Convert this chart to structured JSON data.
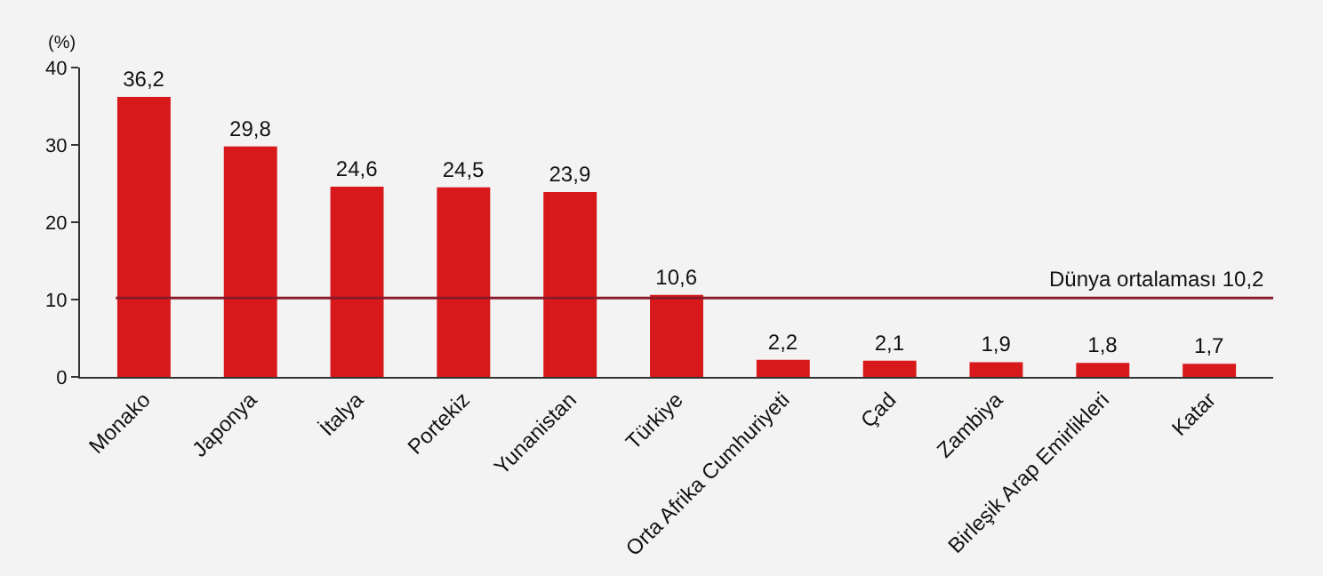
{
  "chart_data": {
    "type": "bar",
    "ylabel": "(%)",
    "categories": [
      "Monako",
      "Japonya",
      "İtalya",
      "Portekiz",
      "Yunanistan",
      "Türkiye",
      "Orta Afrika Cumhuriyeti",
      "Çad",
      "Zambiya",
      "Birleşik Arap Emirlikleri",
      "Katar"
    ],
    "values": [
      36.2,
      29.8,
      24.6,
      24.5,
      23.9,
      10.6,
      2.2,
      2.1,
      1.9,
      1.8,
      1.7
    ],
    "value_labels": [
      "36,2",
      "29,8",
      "24,6",
      "24,5",
      "23,9",
      "10,6",
      "2,2",
      "2,1",
      "1,9",
      "1,8",
      "1,7"
    ],
    "color": "#d7191c",
    "ylim": [
      0,
      40
    ],
    "yticks": [
      0,
      10,
      20,
      30,
      40
    ],
    "grid": false,
    "ref_lines": [
      {
        "axis": "y",
        "value": 10.2,
        "label": "Dünya ortalaması 10,2",
        "color": "#8b1a2b"
      }
    ]
  }
}
